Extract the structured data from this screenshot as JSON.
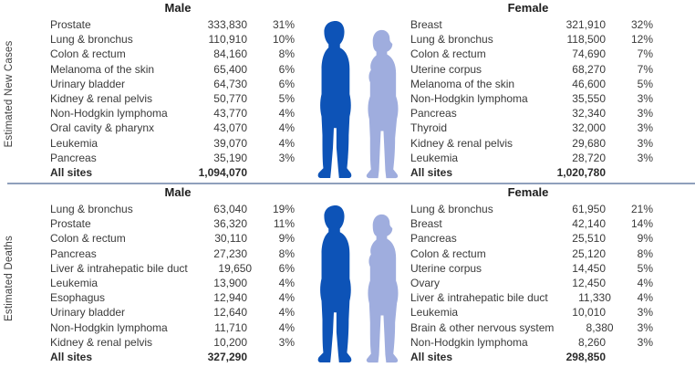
{
  "colors": {
    "male_figure": "#0d53b7",
    "female_figure": "#9fadde",
    "divider": "#8fa0bc",
    "text": "#3a3a3a"
  },
  "chart_data": {
    "type": "table",
    "sections": [
      {
        "side_label": "Estimated New Cases",
        "male": {
          "header": "Male",
          "rows": [
            {
              "site": "Prostate",
              "count": "333,830",
              "pct": "31%"
            },
            {
              "site": "Lung & bronchus",
              "count": "110,910",
              "pct": "10%"
            },
            {
              "site": "Colon & rectum",
              "count": "84,160",
              "pct": "8%"
            },
            {
              "site": "Melanoma of the skin",
              "count": "65,400",
              "pct": "6%"
            },
            {
              "site": "Urinary bladder",
              "count": "64,730",
              "pct": "6%"
            },
            {
              "site": "Kidney & renal pelvis",
              "count": "50,770",
              "pct": "5%"
            },
            {
              "site": "Non-Hodgkin lymphoma",
              "count": "43,770",
              "pct": "4%"
            },
            {
              "site": "Oral cavity & pharynx",
              "count": "43,070",
              "pct": "4%"
            },
            {
              "site": "Leukemia",
              "count": "39,070",
              "pct": "4%"
            },
            {
              "site": "Pancreas",
              "count": "35,190",
              "pct": "3%"
            }
          ],
          "total_label": "All sites",
          "total_value": "1,094,070"
        },
        "female": {
          "header": "Female",
          "rows": [
            {
              "site": "Breast",
              "count": "321,910",
              "pct": "32%"
            },
            {
              "site": "Lung & bronchus",
              "count": "118,500",
              "pct": "12%"
            },
            {
              "site": "Colon & rectum",
              "count": "74,690",
              "pct": "7%"
            },
            {
              "site": "Uterine corpus",
              "count": "68,270",
              "pct": "7%"
            },
            {
              "site": "Melanoma of the skin",
              "count": "46,600",
              "pct": "5%"
            },
            {
              "site": "Non-Hodgkin lymphoma",
              "count": "35,550",
              "pct": "3%"
            },
            {
              "site": "Pancreas",
              "count": "32,340",
              "pct": "3%"
            },
            {
              "site": "Thyroid",
              "count": "32,000",
              "pct": "3%"
            },
            {
              "site": "Kidney & renal pelvis",
              "count": "29,680",
              "pct": "3%"
            },
            {
              "site": "Leukemia",
              "count": "28,720",
              "pct": "3%"
            }
          ],
          "total_label": "All sites",
          "total_value": "1,020,780"
        }
      },
      {
        "side_label": "Estimated Deaths",
        "male": {
          "header": "Male",
          "rows": [
            {
              "site": "Lung & bronchus",
              "count": "63,040",
              "pct": "19%"
            },
            {
              "site": "Prostate",
              "count": "36,320",
              "pct": "11%"
            },
            {
              "site": "Colon & rectum",
              "count": "30,110",
              "pct": "9%"
            },
            {
              "site": "Pancreas",
              "count": "27,230",
              "pct": "8%"
            },
            {
              "site": "Liver & intrahepatic bile duct",
              "count": "19,650",
              "pct": "6%"
            },
            {
              "site": "Leukemia",
              "count": "13,900",
              "pct": "4%"
            },
            {
              "site": "Esophagus",
              "count": "12,940",
              "pct": "4%"
            },
            {
              "site": "Urinary bladder",
              "count": "12,640",
              "pct": "4%"
            },
            {
              "site": "Non-Hodgkin lymphoma",
              "count": "11,710",
              "pct": "4%"
            },
            {
              "site": "Kidney & renal pelvis",
              "count": "10,200",
              "pct": "3%"
            }
          ],
          "total_label": "All sites",
          "total_value": "327,290"
        },
        "female": {
          "header": "Female",
          "rows": [
            {
              "site": "Lung & bronchus",
              "count": "61,950",
              "pct": "21%"
            },
            {
              "site": "Breast",
              "count": "42,140",
              "pct": "14%"
            },
            {
              "site": "Pancreas",
              "count": "25,510",
              "pct": "9%"
            },
            {
              "site": "Colon & rectum",
              "count": "25,120",
              "pct": "8%"
            },
            {
              "site": "Uterine corpus",
              "count": "14,450",
              "pct": "5%"
            },
            {
              "site": "Ovary",
              "count": "12,450",
              "pct": "4%"
            },
            {
              "site": "Liver & intrahepatic bile duct",
              "count": "11,330",
              "pct": "4%"
            },
            {
              "site": "Leukemia",
              "count": "10,010",
              "pct": "3%"
            },
            {
              "site": "Brain & other nervous system",
              "count": "8,380",
              "pct": "3%"
            },
            {
              "site": "Non-Hodgkin lymphoma",
              "count": "8,260",
              "pct": "3%"
            }
          ],
          "total_label": "All sites",
          "total_value": "298,850"
        }
      }
    ]
  }
}
